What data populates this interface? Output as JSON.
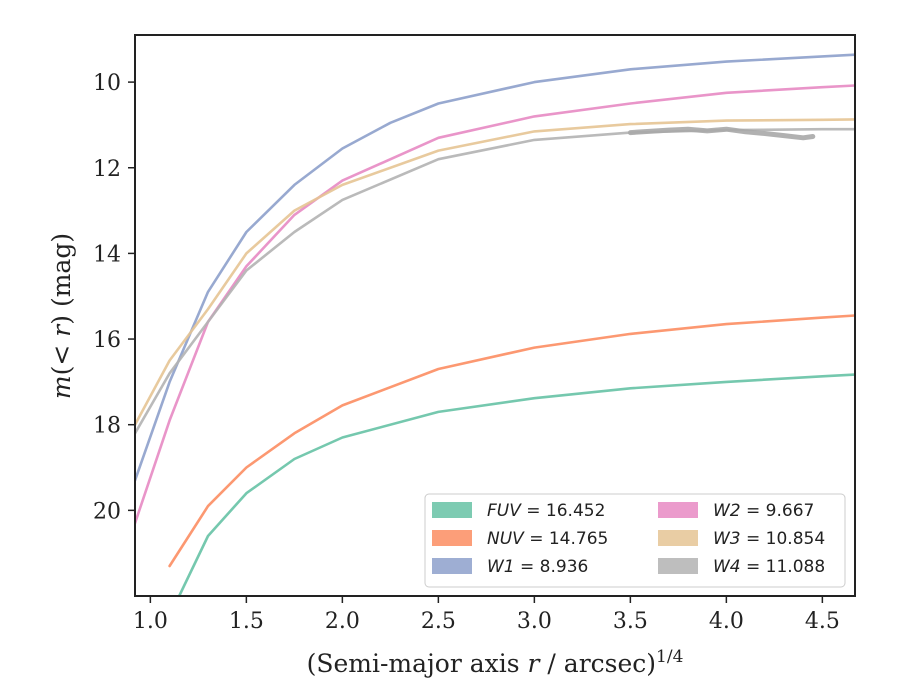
{
  "chart_data": {
    "type": "line",
    "title": "",
    "xlabel": "(Semi-major axis r / arcsec)^1/4",
    "ylabel": "m(< r) (mag)",
    "xlim": [
      0.92,
      4.67
    ],
    "ylim": [
      22.0,
      8.9
    ],
    "y_inverted": true,
    "x_ticks": [
      "1.0",
      "1.5",
      "2.0",
      "2.5",
      "3.0",
      "3.5",
      "4.0",
      "4.5"
    ],
    "y_ticks": [
      "10",
      "12",
      "14",
      "16",
      "18",
      "20"
    ],
    "grid": false,
    "legend_position": "lower-right",
    "legend": [
      {
        "band": "FUV",
        "text": "= 16.452",
        "color": "#66c2a5"
      },
      {
        "band": "NUV",
        "text": "= 14.765",
        "color": "#fc8d62"
      },
      {
        "band": "W1",
        "text": "= 8.936",
        "color": "#8da0cb"
      },
      {
        "band": "W2",
        "text": "= 9.667",
        "color": "#e78ac3"
      },
      {
        "band": "W3",
        "text": "= 10.854",
        "color": "#e5c494"
      },
      {
        "band": "W4",
        "text": "= 11.088",
        "color": "#b3b3b3"
      }
    ],
    "series": [
      {
        "name": "FUV",
        "color": "#66c2a5",
        "x": [
          1.15,
          1.3,
          1.5,
          1.75,
          2.0,
          2.5,
          3.0,
          3.5,
          4.0,
          4.5,
          4.67
        ],
        "y": [
          22.0,
          20.6,
          19.6,
          18.8,
          18.3,
          17.7,
          17.38,
          17.15,
          17.0,
          16.87,
          16.83
        ]
      },
      {
        "name": "NUV",
        "color": "#fc8d62",
        "x": [
          1.1,
          1.3,
          1.5,
          1.75,
          2.0,
          2.5,
          3.0,
          3.5,
          4.0,
          4.5,
          4.67
        ],
        "y": [
          21.3,
          19.9,
          19.0,
          18.2,
          17.55,
          16.7,
          16.2,
          15.88,
          15.65,
          15.5,
          15.45
        ]
      },
      {
        "name": "W1",
        "color": "#8da0cb",
        "x": [
          0.92,
          1.1,
          1.3,
          1.5,
          1.75,
          2.0,
          2.25,
          2.5,
          3.0,
          3.5,
          4.0,
          4.5,
          4.67
        ],
        "y": [
          19.3,
          17.0,
          14.9,
          13.5,
          12.4,
          11.55,
          10.95,
          10.5,
          10.0,
          9.7,
          9.52,
          9.4,
          9.36
        ]
      },
      {
        "name": "W2",
        "color": "#e78ac3",
        "x": [
          0.92,
          1.1,
          1.3,
          1.5,
          1.75,
          2.0,
          2.5,
          3.0,
          3.5,
          4.0,
          4.5,
          4.67
        ],
        "y": [
          20.3,
          17.9,
          15.6,
          14.3,
          13.1,
          12.3,
          11.3,
          10.8,
          10.5,
          10.25,
          10.12,
          10.08
        ]
      },
      {
        "name": "W3",
        "color": "#e5c494",
        "x": [
          0.92,
          1.1,
          1.3,
          1.5,
          1.75,
          2.0,
          2.5,
          3.0,
          3.5,
          4.0,
          4.5,
          4.67
        ],
        "y": [
          18.0,
          16.5,
          15.3,
          14.0,
          13.0,
          12.4,
          11.6,
          11.15,
          10.98,
          10.9,
          10.88,
          10.87
        ]
      },
      {
        "name": "W4",
        "color": "#b3b3b3",
        "x": [
          0.92,
          1.1,
          1.3,
          1.5,
          1.75,
          2.0,
          2.5,
          3.0,
          3.5,
          4.0,
          4.5,
          4.67
        ],
        "y": [
          18.2,
          16.8,
          15.6,
          14.4,
          13.5,
          12.75,
          11.8,
          11.35,
          11.18,
          11.12,
          11.1,
          11.1
        ]
      },
      {
        "name": "W4",
        "color": "#a8a8a8",
        "x": [
          3.5,
          3.7,
          3.8,
          3.9,
          4.0,
          4.1,
          4.2,
          4.3,
          4.4,
          4.45
        ],
        "y": [
          11.18,
          11.12,
          11.1,
          11.14,
          11.1,
          11.16,
          11.2,
          11.25,
          11.3,
          11.27
        ]
      }
    ]
  }
}
